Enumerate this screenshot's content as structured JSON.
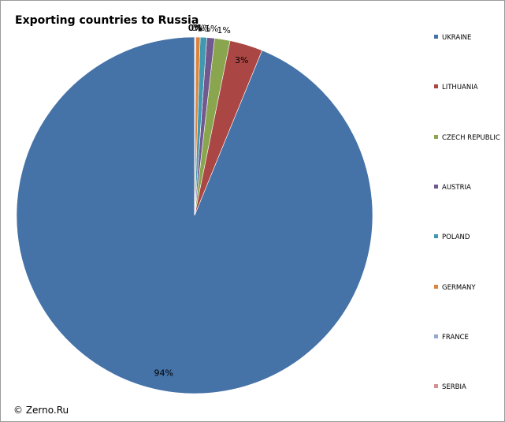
{
  "chart_data": {
    "type": "pie",
    "title": "Exporting countries to Russia",
    "categories": [
      "UKRAINE",
      "LITHUANIA",
      "CZECH REPUBLIC",
      "AUSTRIA",
      "POLAND",
      "GERMANY",
      "FRANCE",
      "SERBIA"
    ],
    "values": [
      94,
      3,
      1.4,
      0.7,
      0.6,
      0.4,
      0.05,
      0.05
    ],
    "data_labels": [
      "94%",
      "3%",
      "1%",
      "1%",
      "1%",
      "0%",
      "0%",
      "0%"
    ],
    "colors": [
      "#4572a7",
      "#aa4643",
      "#89a54e",
      "#71588f",
      "#4198af",
      "#db843d",
      "#93a9cf",
      "#d19392"
    ],
    "legend_position": "right"
  },
  "footer": {
    "copyright": "© Zerno.Ru"
  }
}
